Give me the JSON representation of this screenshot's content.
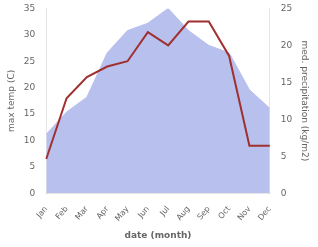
{
  "chart_data": {
    "type": "line",
    "categories": [
      "Jan",
      "Feb",
      "Mar",
      "Apr",
      "May",
      "Jun",
      "Jul",
      "Aug",
      "Sep",
      "Oct",
      "Nov",
      "Dec"
    ],
    "xlabel": "date (month)",
    "ylabel": "max temp (C)",
    "y2label": "med. precipitation (kg/m2)",
    "ylim": [
      0,
      35
    ],
    "yticks": [
      0,
      5,
      10,
      15,
      20,
      25,
      30,
      35
    ],
    "y2lim": [
      0,
      25
    ],
    "y2ticks": [
      0,
      5,
      10,
      15,
      20,
      25
    ],
    "grid": false,
    "series": [
      {
        "type": "area",
        "axis": "y2",
        "color": "#b8c0ee",
        "values": [
          8.0,
          11.0,
          13.0,
          19.0,
          22.0,
          23.0,
          25.0,
          22.0,
          20.0,
          19.0,
          14.0,
          11.5
        ]
      },
      {
        "type": "line",
        "color": "#a03030",
        "values": [
          6.5,
          18.0,
          22.0,
          24.0,
          25.0,
          30.5,
          28.0,
          32.5,
          32.5,
          26.0,
          9.0,
          9.0
        ]
      }
    ]
  }
}
